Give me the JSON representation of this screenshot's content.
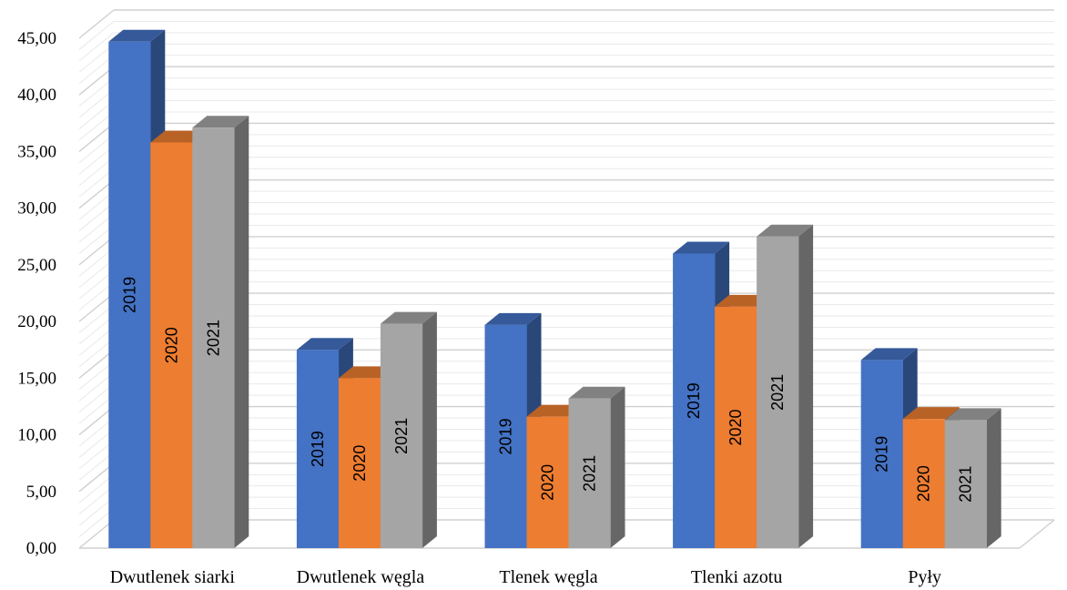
{
  "chart_data": {
    "type": "bar",
    "title": "",
    "xlabel": "",
    "ylabel": "",
    "ylim": [
      0,
      45
    ],
    "y_tick_labels": [
      "0,00",
      "5,00",
      "10,00",
      "15,00",
      "20,00",
      "25,00",
      "30,00",
      "35,00",
      "40,00",
      "45,00"
    ],
    "grid": true,
    "legend": "none",
    "categories": [
      "Dwutlenek siarki",
      "Dwutlenek węgla",
      "Tlenek węgla",
      "Tlenki azotu",
      "Pyły"
    ],
    "series": [
      {
        "name": "2019",
        "color": "#4472C4",
        "values": [
          44.7,
          17.5,
          19.7,
          26.0,
          16.6
        ]
      },
      {
        "name": "2020",
        "color": "#ED7D31",
        "values": [
          35.8,
          15.0,
          11.6,
          21.3,
          11.4
        ]
      },
      {
        "name": "2021",
        "color": "#A5A5A5",
        "values": [
          37.1,
          19.8,
          13.2,
          27.5,
          11.3
        ]
      }
    ]
  }
}
